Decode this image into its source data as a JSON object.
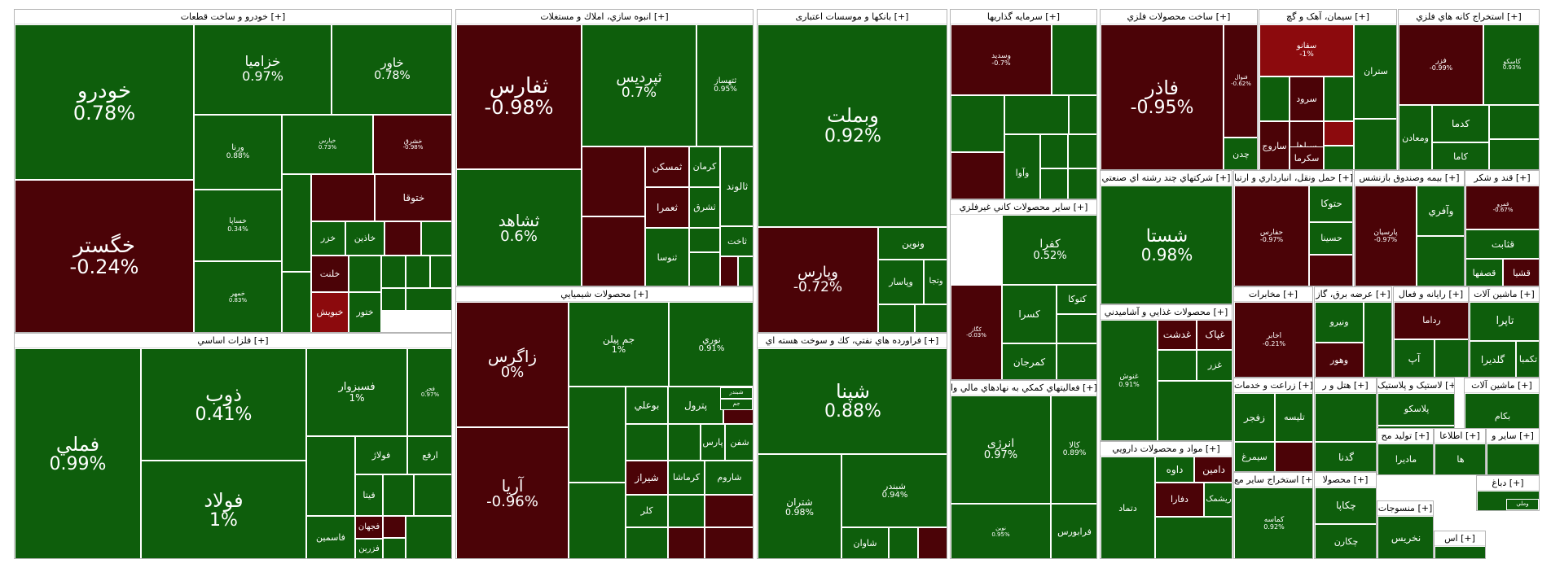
{
  "page": {
    "title": "Market Map"
  },
  "colors": {
    "positive": "#0e5e0c",
    "negative": "#4b0307",
    "strong_negative": "#8c0a0d",
    "border": "#ffffff"
  },
  "chart_data": {
    "type": "treemap",
    "value_unit": "% change",
    "sectors": [
      {
        "name": "خودرو و ساخت قطعات [+]",
        "symbols": [
          {
            "name": "خودرو",
            "change": "0.78%"
          },
          {
            "name": "خگستر",
            "change": "-0.24%"
          },
          {
            "name": "خزامیا",
            "change": "0.97%"
          },
          {
            "name": "خاور",
            "change": "0.78%"
          },
          {
            "name": "ورنا",
            "change": "0.88%"
          },
          {
            "name": "خساپا",
            "change": "0.34%"
          },
          {
            "name": "خمهر",
            "change": "0.83%"
          },
          {
            "name": "خپارس",
            "change": "0.73%"
          },
          {
            "name": "خشرق",
            "change": "-0.98%"
          },
          {
            "name": "ختوقا",
            "change": ""
          },
          {
            "name": "خزر",
            "change": ""
          },
          {
            "name": "خاذین",
            "change": ""
          },
          {
            "name": "خلنت",
            "change": ""
          },
          {
            "name": "خبویش",
            "change": ""
          },
          {
            "name": "ختور",
            "change": ""
          }
        ]
      },
      {
        "name": "انبوه سازي، املاك و مستغلات [+]",
        "symbols": [
          {
            "name": "ثفارس",
            "change": "-0.98%"
          },
          {
            "name": "ثپردیس",
            "change": "0.7%"
          },
          {
            "name": "ثتهساز",
            "change": "0.95%"
          },
          {
            "name": "ثشاهد",
            "change": "0.6%"
          },
          {
            "name": "ثمسکن",
            "change": ""
          },
          {
            "name": "کرمان",
            "change": ""
          },
          {
            "name": "ثالوند",
            "change": ""
          },
          {
            "name": "ثعمرا",
            "change": ""
          },
          {
            "name": "ثشرق",
            "change": ""
          },
          {
            "name": "ثاخت",
            "change": ""
          },
          {
            "name": "ثنوسا",
            "change": ""
          }
        ]
      },
      {
        "name": "بانکها و موسسات اعتباری [+]",
        "symbols": [
          {
            "name": "وبملت",
            "change": "0.92%"
          },
          {
            "name": "وپارس",
            "change": "-0.72%"
          },
          {
            "name": "ونوین",
            "change": ""
          },
          {
            "name": "وپاسار",
            "change": ""
          },
          {
            "name": "وتجا",
            "change": ""
          }
        ]
      },
      {
        "name": "سرمايه گذاريها [+]",
        "symbols": [
          {
            "name": "وسدید",
            "change": "-0.7%"
          },
          {
            "name": "وآوا",
            "change": ""
          }
        ]
      },
      {
        "name": "ساخت محصولات فلزي [+]",
        "symbols": [
          {
            "name": "فاذر",
            "change": "-0.95%"
          },
          {
            "name": "فنوال",
            "change": "-0.62%"
          },
          {
            "name": "چدن",
            "change": ""
          }
        ]
      },
      {
        "name": "سیمان، آهک و گچ [+]",
        "symbols": [
          {
            "name": "سفانو",
            "change": "-1%"
          },
          {
            "name": "ستران",
            "change": ""
          },
          {
            "name": "سرود",
            "change": ""
          },
          {
            "name": "سپاها",
            "change": ""
          },
          {
            "name": "ساروج",
            "change": ""
          },
          {
            "name": "سکرما",
            "change": ""
          }
        ]
      },
      {
        "name": "استخراج کانه هاي فلزي [+]",
        "symbols": [
          {
            "name": "فزر",
            "change": "-0.99%"
          },
          {
            "name": "کاسکو",
            "change": "0.93%"
          },
          {
            "name": "کدما",
            "change": ""
          },
          {
            "name": "کاما",
            "change": ""
          },
          {
            "name": "ومعادن",
            "change": ""
          }
        ]
      },
      {
        "name": "فلزات اساسي [+]",
        "symbols": [
          {
            "name": "فملي",
            "change": "0.99%"
          },
          {
            "name": "ذوب",
            "change": "0.41%"
          },
          {
            "name": "فولاد",
            "change": "1%"
          },
          {
            "name": "فسبزوار",
            "change": "1%"
          },
          {
            "name": "فجر",
            "change": "0.97%"
          },
          {
            "name": "فولاژ",
            "change": ""
          },
          {
            "name": "ارفع",
            "change": ""
          },
          {
            "name": "فیتا",
            "change": ""
          },
          {
            "name": "فجهان",
            "change": ""
          },
          {
            "name": "فاسمین",
            "change": ""
          },
          {
            "name": "فزرین",
            "change": ""
          }
        ]
      },
      {
        "name": "محصولات شيميايي [+]",
        "symbols": [
          {
            "name": "زاگرس",
            "change": "0%"
          },
          {
            "name": "آریا",
            "change": "-0.96%"
          },
          {
            "name": "جم پیلن",
            "change": "1%"
          },
          {
            "name": "نوري",
            "change": "0.91%"
          },
          {
            "name": "تاپیکو",
            "change": ""
          },
          {
            "name": "بوعلي",
            "change": ""
          },
          {
            "name": "پترول",
            "change": ""
          },
          {
            "name": "شفن",
            "change": ""
          },
          {
            "name": "پارس",
            "change": ""
          },
          {
            "name": "شیراز",
            "change": ""
          },
          {
            "name": "کرماشا",
            "change": ""
          },
          {
            "name": "شاروم",
            "change": ""
          },
          {
            "name": "کلر",
            "change": ""
          },
          {
            "name": "جم",
            "change": ""
          },
          {
            "name": "شبندر",
            "change": ""
          }
        ]
      },
      {
        "name": "فراورده هاي نفتي، كك و سوخت هسته اي [+]",
        "symbols": [
          {
            "name": "شپنا",
            "change": "0.88%"
          },
          {
            "name": "شتران",
            "change": "0.98%"
          },
          {
            "name": "شبندر",
            "change": "0.94%"
          },
          {
            "name": "شاوان",
            "change": ""
          }
        ]
      },
      {
        "name": "ساير محصولات كاني غيرفلزي [+]",
        "symbols": [
          {
            "name": "کفرا",
            "change": "0.52%"
          },
          {
            "name": "کگاز",
            "change": "-0.03%"
          },
          {
            "name": "کسرا",
            "change": ""
          },
          {
            "name": "کمرجان",
            "change": ""
          },
          {
            "name": "کتوکا",
            "change": ""
          }
        ]
      },
      {
        "name": "فعاليتهاي كمكي به نهادهاي مالي وا [+]",
        "symbols": [
          {
            "name": "انرژی",
            "change": "0.97%"
          },
          {
            "name": "کالا",
            "change": "0.89%"
          },
          {
            "name": "نوین",
            "change": "0.95%"
          },
          {
            "name": "فرابورس",
            "change": ""
          }
        ]
      },
      {
        "name": "شرکتهاي چند رشته اي صنعتي [+]",
        "symbols": [
          {
            "name": "شستا",
            "change": "0.98%"
          }
        ]
      },
      {
        "name": "محصولات غذايي و آشاميدني [+]",
        "symbols": [
          {
            "name": "غنوش",
            "change": "0.91%"
          },
          {
            "name": "غدشت",
            "change": ""
          },
          {
            "name": "غپاک",
            "change": ""
          },
          {
            "name": "غزر",
            "change": ""
          }
        ]
      },
      {
        "name": "مواد و محصولات دارويي [+]",
        "symbols": [
          {
            "name": "دامین",
            "change": ""
          },
          {
            "name": "داوه",
            "change": ""
          },
          {
            "name": "دفارا",
            "change": ""
          },
          {
            "name": "ریشمک",
            "change": ""
          },
          {
            "name": "دتماد",
            "change": ""
          }
        ]
      },
      {
        "name": "حمل ونقل، انبارداري و ارتبا [+]",
        "symbols": [
          {
            "name": "حفارس",
            "change": "-0.97%"
          },
          {
            "name": "حتوکا",
            "change": ""
          },
          {
            "name": "حسینا",
            "change": ""
          }
        ]
      },
      {
        "name": "بیمه وصندوق بازنشس [+]",
        "symbols": [
          {
            "name": "پارسیان",
            "change": "-0.97%"
          },
          {
            "name": "وآفري",
            "change": ""
          }
        ]
      },
      {
        "name": "قند و شكر [+]",
        "symbols": [
          {
            "name": "قمرو",
            "change": "-0.67%"
          },
          {
            "name": "قثابت",
            "change": ""
          },
          {
            "name": "قصفها",
            "change": ""
          },
          {
            "name": "قشیا",
            "change": ""
          }
        ]
      },
      {
        "name": "مخابرات [+]",
        "symbols": [
          {
            "name": "اخابر",
            "change": "-0.21%"
          }
        ]
      },
      {
        "name": "عرضه برق، گاز [+]",
        "symbols": [
          {
            "name": "ونیرو",
            "change": ""
          },
          {
            "name": "وهور",
            "change": ""
          }
        ]
      },
      {
        "name": "رایانه و فعال [+]",
        "symbols": [
          {
            "name": "رداما",
            "change": ""
          },
          {
            "name": "آپ",
            "change": ""
          }
        ]
      },
      {
        "name": "ماشین آلات [+]",
        "symbols": [
          {
            "name": "تاپرا",
            "change": ""
          },
          {
            "name": "گلدیرا",
            "change": ""
          },
          {
            "name": "تکمبا",
            "change": ""
          }
        ]
      },
      {
        "name": "زراعت و خدمات [+]",
        "symbols": [
          {
            "name": "زفجر",
            "change": ""
          },
          {
            "name": "تلیسه",
            "change": ""
          },
          {
            "name": "سیمرغ",
            "change": ""
          }
        ]
      },
      {
        "name": "هتل و ر [+]",
        "symbols": [
          {
            "name": "گدنا",
            "change": ""
          }
        ]
      },
      {
        "name": "لاستیک و پلاستیک [+]",
        "symbols": [
          {
            "name": "پلاسکو",
            "change": ""
          }
        ]
      },
      {
        "name": "ماشین آلات [+]",
        "symbols": [
          {
            "name": "بکام",
            "change": ""
          }
        ]
      },
      {
        "name": "استخراج ساير مع [+]",
        "symbols": [
          {
            "name": "کماسه",
            "change": "0.92%"
          }
        ]
      },
      {
        "name": "محصولا [+]",
        "symbols": [
          {
            "name": "چکاپا",
            "change": ""
          },
          {
            "name": "چکارن",
            "change": ""
          }
        ]
      },
      {
        "name": "تولید مح [+]",
        "symbols": [
          {
            "name": "مادیرا",
            "change": ""
          }
        ]
      },
      {
        "name": "اطلاعا [+]",
        "symbols": [
          {
            "name": "ها",
            "change": ""
          }
        ]
      },
      {
        "name": "سایر و [+]",
        "symbols": []
      },
      {
        "name": "دباغ [+]",
        "symbols": [
          {
            "name": "وملي",
            "change": ""
          }
        ]
      },
      {
        "name": "منسوجات [+]",
        "symbols": [
          {
            "name": "نخریس",
            "change": ""
          }
        ]
      },
      {
        "name": "اس [+]",
        "symbols": []
      }
    ]
  }
}
